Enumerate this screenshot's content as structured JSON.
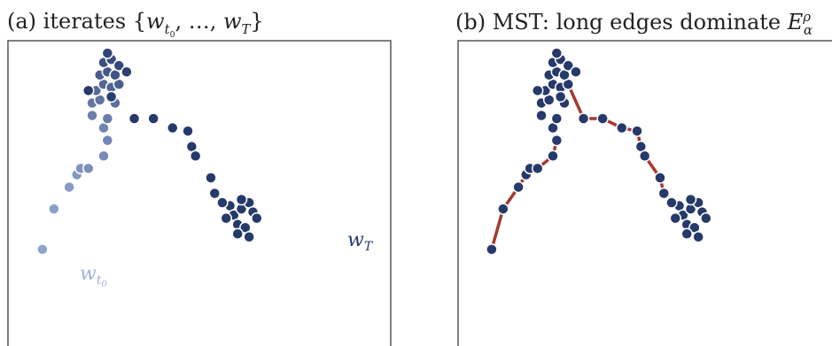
{
  "panel_a": {
    "title_prefix": "(a) iterates {",
    "title_var": "w",
    "title_sub_start": "t",
    "title_sub_start_index": "0",
    "title_sep": ", …, ",
    "title_var_end": "w",
    "title_sub_end": "T",
    "title_suffix": "}",
    "label_end_var": "w",
    "label_end_sub": "T",
    "label_start_var": "w",
    "label_start_sub": "t",
    "label_start_sub_index": "0"
  },
  "panel_b": {
    "title_prefix": "(b) MST: long edges dominate ",
    "title_var": "E",
    "title_sub": "α",
    "title_sup": "ρ"
  },
  "colors": {
    "frame": "#555555",
    "point_dark": "#25396b",
    "point_mid": "#4d6699",
    "point_light": "#8fa3cc",
    "edge_long": "#a33a2f",
    "edge_short": "#b3b3b3",
    "label_end": "#25396b",
    "label_start": "#9fb2d6"
  },
  "chart_data": {
    "type": "scatter",
    "points": [
      [
        0.09,
        0.33
      ],
      [
        0.12,
        0.46
      ],
      [
        0.16,
        0.53
      ],
      [
        0.18,
        0.57
      ],
      [
        0.19,
        0.59
      ],
      [
        0.21,
        0.59
      ],
      [
        0.25,
        0.63
      ],
      [
        0.26,
        0.68
      ],
      [
        0.25,
        0.72
      ],
      [
        0.22,
        0.76
      ],
      [
        0.26,
        0.75
      ],
      [
        0.22,
        0.8
      ],
      [
        0.24,
        0.81
      ],
      [
        0.28,
        0.8
      ],
      [
        0.23,
        0.84
      ],
      [
        0.25,
        0.86
      ],
      [
        0.27,
        0.85
      ],
      [
        0.29,
        0.86
      ],
      [
        0.24,
        0.89
      ],
      [
        0.26,
        0.9
      ],
      [
        0.28,
        0.89
      ],
      [
        0.25,
        0.93
      ],
      [
        0.27,
        0.94
      ],
      [
        0.29,
        0.92
      ],
      [
        0.26,
        0.96
      ],
      [
        0.31,
        0.9
      ],
      [
        0.27,
        0.82
      ],
      [
        0.21,
        0.84
      ],
      [
        0.33,
        0.75
      ],
      [
        0.38,
        0.75
      ],
      [
        0.43,
        0.72
      ],
      [
        0.47,
        0.71
      ],
      [
        0.48,
        0.66
      ],
      [
        0.49,
        0.63
      ],
      [
        0.53,
        0.56
      ],
      [
        0.54,
        0.51
      ],
      [
        0.58,
        0.47
      ],
      [
        0.59,
        0.44
      ],
      [
        0.61,
        0.46
      ],
      [
        0.63,
        0.48
      ],
      [
        0.64,
        0.45
      ],
      [
        0.6,
        0.41
      ],
      [
        0.62,
        0.4
      ],
      [
        0.65,
        0.43
      ],
      [
        0.57,
        0.43
      ],
      [
        0.6,
        0.38
      ],
      [
        0.63,
        0.37
      ],
      [
        0.56,
        0.48
      ],
      [
        0.61,
        0.49
      ]
    ],
    "mst_long_edges": [
      [
        [
          0.09,
          0.33
        ],
        [
          0.12,
          0.46
        ]
      ],
      [
        [
          0.12,
          0.46
        ],
        [
          0.16,
          0.53
        ]
      ],
      [
        [
          0.16,
          0.53
        ],
        [
          0.18,
          0.57
        ]
      ],
      [
        [
          0.18,
          0.57
        ],
        [
          0.21,
          0.59
        ]
      ],
      [
        [
          0.21,
          0.59
        ],
        [
          0.25,
          0.63
        ]
      ],
      [
        [
          0.25,
          0.63
        ],
        [
          0.26,
          0.68
        ]
      ],
      [
        [
          0.29,
          0.86
        ],
        [
          0.33,
          0.75
        ]
      ],
      [
        [
          0.33,
          0.75
        ],
        [
          0.38,
          0.75
        ]
      ],
      [
        [
          0.38,
          0.75
        ],
        [
          0.43,
          0.72
        ]
      ],
      [
        [
          0.43,
          0.72
        ],
        [
          0.47,
          0.71
        ]
      ],
      [
        [
          0.47,
          0.71
        ],
        [
          0.48,
          0.66
        ]
      ],
      [
        [
          0.48,
          0.66
        ],
        [
          0.49,
          0.63
        ]
      ],
      [
        [
          0.49,
          0.63
        ],
        [
          0.53,
          0.56
        ]
      ],
      [
        [
          0.53,
          0.56
        ],
        [
          0.54,
          0.51
        ]
      ]
    ],
    "mst_short_edges": [
      [
        [
          0.54,
          0.51
        ],
        [
          0.58,
          0.47
        ]
      ]
    ]
  }
}
